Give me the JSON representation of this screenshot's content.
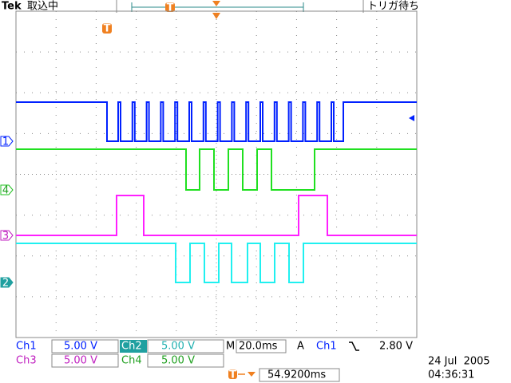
{
  "header": {
    "brand": "Tek",
    "status": "取込中",
    "trigger_status": "トリガ待ち",
    "trigger_marker": "T"
  },
  "channel_markers": [
    "1",
    "4",
    "3",
    "2"
  ],
  "readouts": {
    "ch1": {
      "label": "Ch1",
      "scale": "5.00 V"
    },
    "ch2": {
      "label": "Ch2",
      "scale": "5.00 V"
    },
    "ch3": {
      "label": "Ch3",
      "scale": "5.00 V"
    },
    "ch4": {
      "label": "Ch4",
      "scale": "5.00 V"
    },
    "timebase": {
      "label": "M",
      "value": "20.0ms"
    },
    "trigger": {
      "mode": "A",
      "source": "Ch1",
      "level": "2.80 V"
    },
    "trigger_position": "54.9200ms"
  },
  "timestamp": {
    "date": "24 Jul  2005",
    "time": "04:36:31"
  }
}
